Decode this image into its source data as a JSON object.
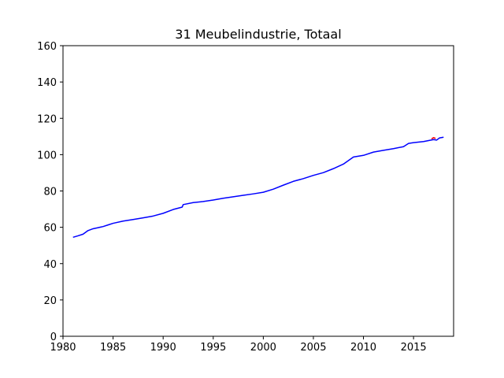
{
  "chart_data": {
    "type": "line",
    "title": "31 Meubelindustrie, Totaal",
    "xlabel": "",
    "ylabel": "",
    "xlim": [
      1980,
      2019
    ],
    "ylim": [
      0,
      160
    ],
    "xticks": [
      1980,
      1985,
      1990,
      1995,
      2000,
      2005,
      2010,
      2015
    ],
    "yticks": [
      0,
      20,
      40,
      60,
      80,
      100,
      120,
      140,
      160
    ],
    "grid": false,
    "legend": "none",
    "series": [
      {
        "color": "#0000ff",
        "x": [
          1981.0,
          1981.5,
          1982.0,
          1982.5,
          1983.0,
          1983.5,
          1984.0,
          1984.5,
          1985.0,
          1986.0,
          1987.0,
          1988.0,
          1989.0,
          1990.0,
          1991.0,
          1991.9,
          1992.0,
          1993.0,
          1994.0,
          1995.0,
          1996.0,
          1997.0,
          1998.0,
          1999.0,
          2000.0,
          2001.0,
          2002.0,
          2003.0,
          2004.0,
          2005.0,
          2006.0,
          2007.0,
          2008.0,
          2009.0,
          2010.0,
          2011.0,
          2012.0,
          2013.0,
          2014.0,
          2014.5,
          2015.0,
          2016.0,
          2017.0,
          2017.3,
          2017.6,
          2018.0
        ],
        "y": [
          54.5,
          55.3,
          56.2,
          58.2,
          59.2,
          59.8,
          60.4,
          61.3,
          62.2,
          63.4,
          64.3,
          65.2,
          66.2,
          67.7,
          69.8,
          71.1,
          72.5,
          73.6,
          74.2,
          75.0,
          76.0,
          76.8,
          77.6,
          78.4,
          79.3,
          81.0,
          83.2,
          85.3,
          86.8,
          88.6,
          90.1,
          92.3,
          94.8,
          98.7,
          99.6,
          101.4,
          102.4,
          103.3,
          104.4,
          106.2,
          106.6,
          107.2,
          108.3,
          108.0,
          109.2,
          109.6
        ]
      },
      {
        "color": "#ff0000",
        "x": [
          2016.8,
          2017.0,
          2017.2
        ],
        "y": [
          108.7,
          109.4,
          108.9
        ]
      }
    ]
  }
}
